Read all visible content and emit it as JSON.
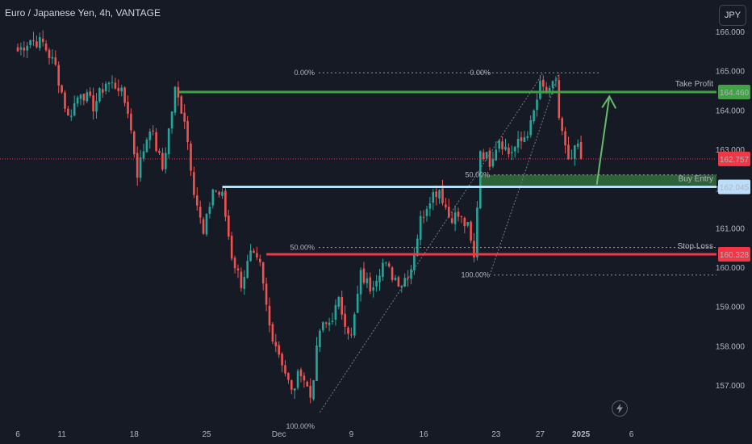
{
  "header": {
    "title": "Euro / Japanese Yen, 4h, VANTAGE",
    "currency": "JPY"
  },
  "colors": {
    "up": "#26a69a",
    "down": "#ef5350",
    "tp": "#43a047",
    "sl": "#f23645",
    "entry": "#bbdefb",
    "current": "#f23645"
  },
  "chart_data": {
    "type": "candlestick",
    "symbol": "Euro / Japanese Yen",
    "interval": "4h",
    "ylim": [
      156.4,
      166.4
    ],
    "y_ticks": [
      "166.000",
      "165.000",
      "164.000",
      "163.000",
      "162.000",
      "161.000",
      "160.000",
      "159.000",
      "158.000",
      "157.000"
    ],
    "x_ticks": [
      {
        "label": "6",
        "slot": 0
      },
      {
        "label": "11",
        "slot": 14
      },
      {
        "label": "18",
        "slot": 37
      },
      {
        "label": "25",
        "slot": 60
      },
      {
        "label": "Dec",
        "slot": 83
      },
      {
        "label": "9",
        "slot": 106
      },
      {
        "label": "16",
        "slot": 129
      },
      {
        "label": "23",
        "slot": 152
      },
      {
        "label": "27",
        "slot": 166
      },
      {
        "label": "2025",
        "slot": 179
      },
      {
        "label": "6",
        "slot": 195
      }
    ],
    "levels": [
      {
        "label": "Take Profit",
        "price": 164.46,
        "price_label": "164.460",
        "color": "#43a047"
      },
      {
        "label": "Buy Entry",
        "price": 162.045,
        "price_label": "162.045",
        "color": "#bbdefb"
      },
      {
        "label": "Stop Loss",
        "price": 160.328,
        "price_label": "160.328",
        "color": "#f23645"
      }
    ],
    "current_price": {
      "price": 162.757,
      "label": "162.757"
    },
    "fib_left": {
      "levels": [
        {
          "label": "0.00%",
          "price": 164.95
        },
        {
          "label": "50.00%",
          "price": 160.5
        },
        {
          "label": "100.00%",
          "price": 156.1
        }
      ]
    },
    "fib_right": {
      "levels": [
        {
          "label": "0.00%",
          "price": 164.95
        },
        {
          "label": "50.00%",
          "price": 162.35
        },
        {
          "label": "100.00%",
          "price": 159.8
        }
      ]
    },
    "anchors": [
      {
        "slot": 0,
        "price": 165.5
      },
      {
        "slot": 4,
        "price": 165.8
      },
      {
        "slot": 8,
        "price": 165.7
      },
      {
        "slot": 12,
        "price": 165.1
      },
      {
        "slot": 16,
        "price": 163.8
      },
      {
        "slot": 20,
        "price": 164.5
      },
      {
        "slot": 24,
        "price": 164.1
      },
      {
        "slot": 28,
        "price": 164.7
      },
      {
        "slot": 32,
        "price": 164.6
      },
      {
        "slot": 35,
        "price": 164.0
      },
      {
        "slot": 38,
        "price": 162.4
      },
      {
        "slot": 42,
        "price": 163.6
      },
      {
        "slot": 46,
        "price": 162.5
      },
      {
        "slot": 50,
        "price": 164.5
      },
      {
        "slot": 53,
        "price": 163.8
      },
      {
        "slot": 56,
        "price": 162.0
      },
      {
        "slot": 59,
        "price": 160.8
      },
      {
        "slot": 62,
        "price": 162.0
      },
      {
        "slot": 65,
        "price": 161.8
      },
      {
        "slot": 68,
        "price": 160.3
      },
      {
        "slot": 71,
        "price": 159.6
      },
      {
        "slot": 74,
        "price": 160.3
      },
      {
        "slot": 77,
        "price": 160.0
      },
      {
        "slot": 80,
        "price": 158.5
      },
      {
        "slot": 84,
        "price": 157.6
      },
      {
        "slot": 87,
        "price": 156.8
      },
      {
        "slot": 90,
        "price": 157.4
      },
      {
        "slot": 93,
        "price": 156.7
      },
      {
        "slot": 96,
        "price": 158.4
      },
      {
        "slot": 99,
        "price": 158.6
      },
      {
        "slot": 102,
        "price": 159.1
      },
      {
        "slot": 106,
        "price": 158.2
      },
      {
        "slot": 109,
        "price": 159.8
      },
      {
        "slot": 112,
        "price": 159.5
      },
      {
        "slot": 116,
        "price": 160.1
      },
      {
        "slot": 119,
        "price": 159.8
      },
      {
        "slot": 122,
        "price": 159.6
      },
      {
        "slot": 125,
        "price": 160.0
      },
      {
        "slot": 128,
        "price": 161.2
      },
      {
        "slot": 131,
        "price": 161.8
      },
      {
        "slot": 134,
        "price": 162.0
      },
      {
        "slot": 137,
        "price": 161.3
      },
      {
        "slot": 140,
        "price": 161.3
      },
      {
        "slot": 143,
        "price": 161.0
      },
      {
        "slot": 145,
        "price": 160.2
      },
      {
        "slot": 147,
        "price": 163.0
      },
      {
        "slot": 150,
        "price": 162.7
      },
      {
        "slot": 153,
        "price": 163.3
      },
      {
        "slot": 156,
        "price": 162.9
      },
      {
        "slot": 160,
        "price": 163.2
      },
      {
        "slot": 163,
        "price": 163.6
      },
      {
        "slot": 166,
        "price": 164.6
      },
      {
        "slot": 169,
        "price": 164.4
      },
      {
        "slot": 171,
        "price": 164.8
      },
      {
        "slot": 172,
        "price": 163.8
      },
      {
        "slot": 175,
        "price": 162.6
      },
      {
        "slot": 178,
        "price": 163.1
      },
      {
        "slot": 179,
        "price": 162.757
      }
    ],
    "arrow": {
      "from": {
        "slot": 184,
        "price": 162.1
      },
      "to": {
        "slot": 188,
        "price": 164.35
      }
    }
  }
}
